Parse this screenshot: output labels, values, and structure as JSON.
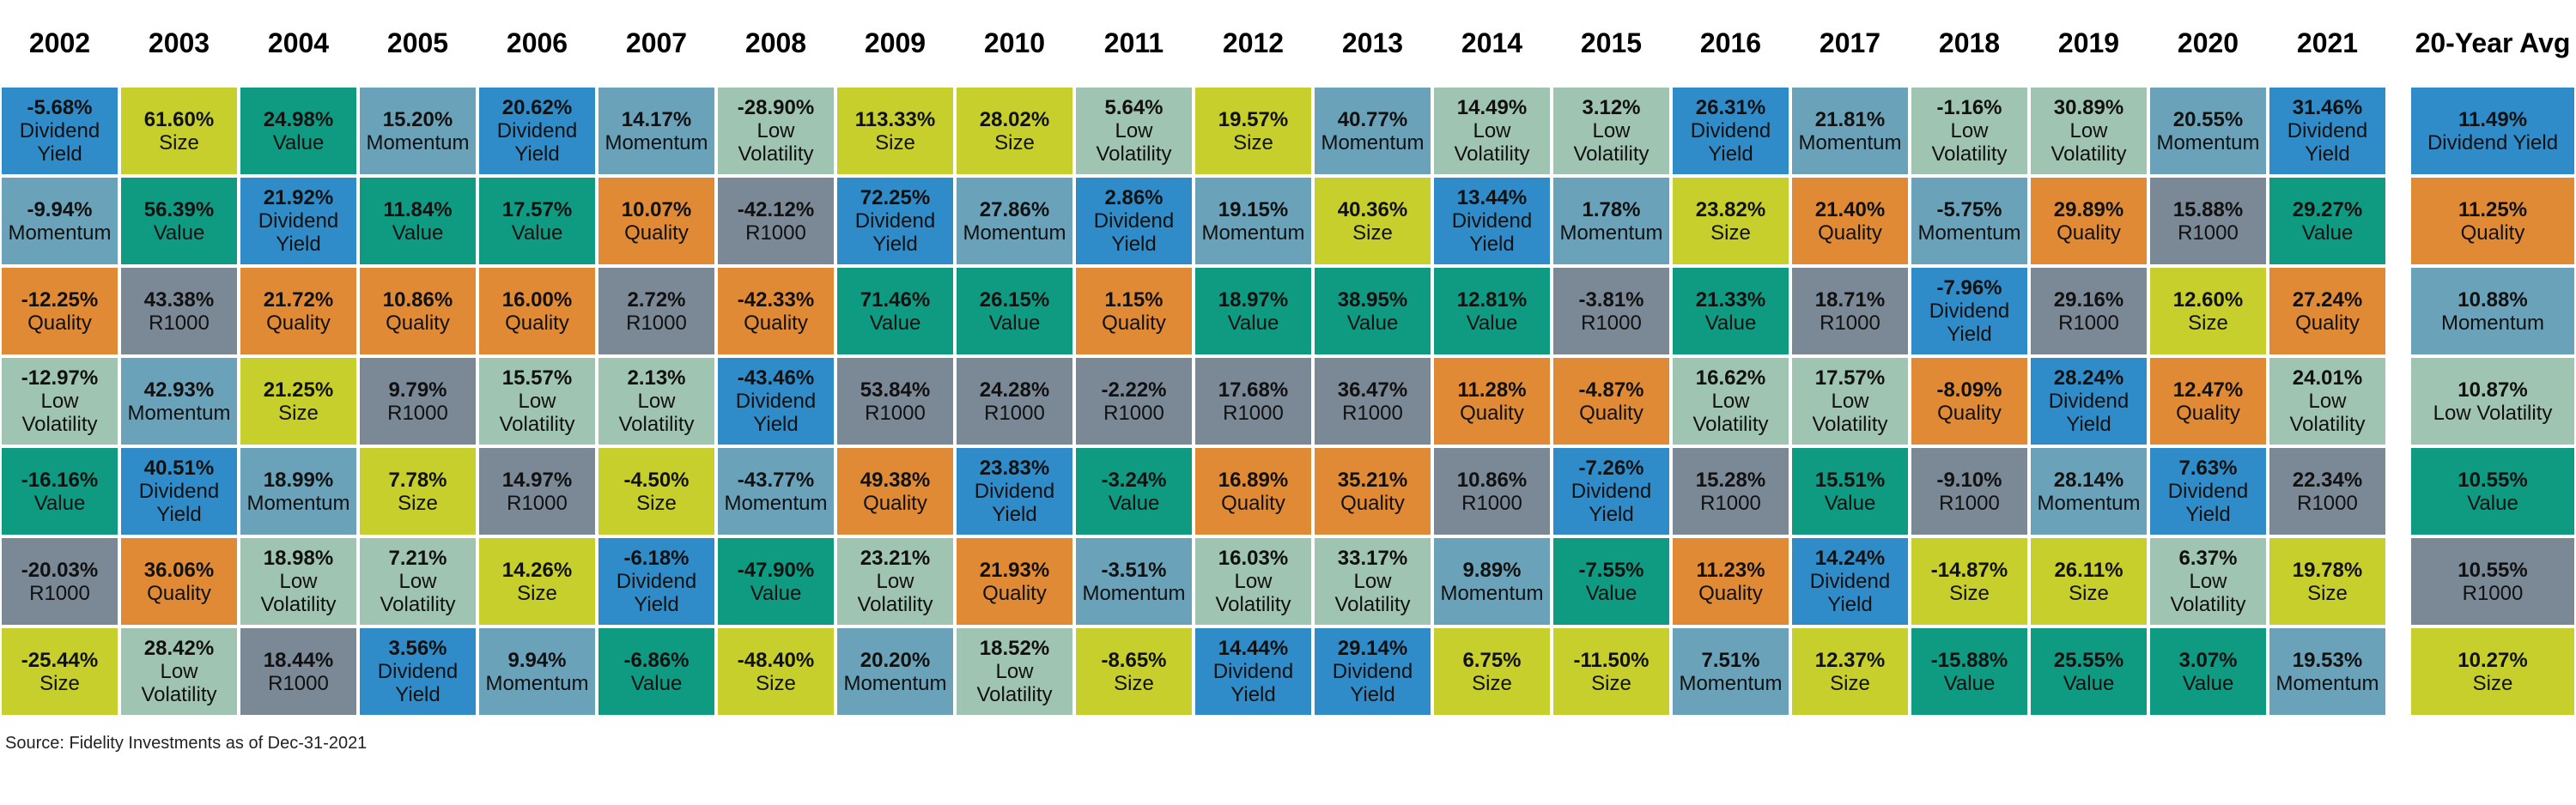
{
  "columns": [
    {
      "year": "2002",
      "cells": [
        [
          "-5.68%",
          "Dividend Yield"
        ],
        [
          "-9.94%",
          "Momentum"
        ],
        [
          "-12.25%",
          "Quality"
        ],
        [
          "-12.97%",
          "Low Volatility"
        ],
        [
          "-16.16%",
          "Value"
        ],
        [
          "-20.03%",
          "R1000"
        ],
        [
          "-25.44%",
          "Size"
        ]
      ]
    },
    {
      "year": "2003",
      "cells": [
        [
          "61.60%",
          "Size"
        ],
        [
          "56.39%",
          "Value"
        ],
        [
          "43.38%",
          "R1000"
        ],
        [
          "42.93%",
          "Momentum"
        ],
        [
          "40.51%",
          "Dividend Yield"
        ],
        [
          "36.06%",
          "Quality"
        ],
        [
          "28.42%",
          "Low Volatility"
        ]
      ]
    },
    {
      "year": "2004",
      "cells": [
        [
          "24.98%",
          "Value"
        ],
        [
          "21.92%",
          "Dividend Yield"
        ],
        [
          "21.72%",
          "Quality"
        ],
        [
          "21.25%",
          "Size"
        ],
        [
          "18.99%",
          "Momentum"
        ],
        [
          "18.98%",
          "Low Volatility"
        ],
        [
          "18.44%",
          "R1000"
        ]
      ]
    },
    {
      "year": "2005",
      "cells": [
        [
          "15.20%",
          "Momentum"
        ],
        [
          "11.84%",
          "Value"
        ],
        [
          "10.86%",
          "Quality"
        ],
        [
          "9.79%",
          "R1000"
        ],
        [
          "7.78%",
          "Size"
        ],
        [
          "7.21%",
          "Low Volatility"
        ],
        [
          "3.56%",
          "Dividend Yield"
        ]
      ]
    },
    {
      "year": "2006",
      "cells": [
        [
          "20.62%",
          "Dividend Yield"
        ],
        [
          "17.57%",
          "Value"
        ],
        [
          "16.00%",
          "Quality"
        ],
        [
          "15.57%",
          "Low Volatility"
        ],
        [
          "14.97%",
          "R1000"
        ],
        [
          "14.26%",
          "Size"
        ],
        [
          "9.94%",
          "Momentum"
        ]
      ]
    },
    {
      "year": "2007",
      "cells": [
        [
          "14.17%",
          "Momentum"
        ],
        [
          "10.07%",
          "Quality"
        ],
        [
          "2.72%",
          "R1000"
        ],
        [
          "2.13%",
          "Low Volatility"
        ],
        [
          "-4.50%",
          "Size"
        ],
        [
          "-6.18%",
          "Dividend Yield"
        ],
        [
          "-6.86%",
          "Value"
        ]
      ]
    },
    {
      "year": "2008",
      "cells": [
        [
          "-28.90%",
          "Low Volatility"
        ],
        [
          "-42.12%",
          "R1000"
        ],
        [
          "-42.33%",
          "Quality"
        ],
        [
          "-43.46%",
          "Dividend Yield"
        ],
        [
          "-43.77%",
          "Momentum"
        ],
        [
          "-47.90%",
          "Value"
        ],
        [
          "-48.40%",
          "Size"
        ]
      ]
    },
    {
      "year": "2009",
      "cells": [
        [
          "113.33%",
          "Size"
        ],
        [
          "72.25%",
          "Dividend Yield"
        ],
        [
          "71.46%",
          "Value"
        ],
        [
          "53.84%",
          "R1000"
        ],
        [
          "49.38%",
          "Quality"
        ],
        [
          "23.21%",
          "Low Volatility"
        ],
        [
          "20.20%",
          "Momentum"
        ]
      ]
    },
    {
      "year": "2010",
      "cells": [
        [
          "28.02%",
          "Size"
        ],
        [
          "27.86%",
          "Momentum"
        ],
        [
          "26.15%",
          "Value"
        ],
        [
          "24.28%",
          "R1000"
        ],
        [
          "23.83%",
          "Dividend Yield"
        ],
        [
          "21.93%",
          "Quality"
        ],
        [
          "18.52%",
          "Low Volatility"
        ]
      ]
    },
    {
      "year": "2011",
      "cells": [
        [
          "5.64%",
          "Low Volatility"
        ],
        [
          "2.86%",
          "Dividend Yield"
        ],
        [
          "1.15%",
          "Quality"
        ],
        [
          "-2.22%",
          "R1000"
        ],
        [
          "-3.24%",
          "Value"
        ],
        [
          "-3.51%",
          "Momentum"
        ],
        [
          "-8.65%",
          "Size"
        ]
      ]
    },
    {
      "year": "2012",
      "cells": [
        [
          "19.57%",
          "Size"
        ],
        [
          "19.15%",
          "Momentum"
        ],
        [
          "18.97%",
          "Value"
        ],
        [
          "17.68%",
          "R1000"
        ],
        [
          "16.89%",
          "Quality"
        ],
        [
          "16.03%",
          "Low Volatility"
        ],
        [
          "14.44%",
          "Dividend Yield"
        ]
      ]
    },
    {
      "year": "2013",
      "cells": [
        [
          "40.77%",
          "Momentum"
        ],
        [
          "40.36%",
          "Size"
        ],
        [
          "38.95%",
          "Value"
        ],
        [
          "36.47%",
          "R1000"
        ],
        [
          "35.21%",
          "Quality"
        ],
        [
          "33.17%",
          "Low Volatility"
        ],
        [
          "29.14%",
          "Dividend Yield"
        ]
      ]
    },
    {
      "year": "2014",
      "cells": [
        [
          "14.49%",
          "Low Volatility"
        ],
        [
          "13.44%",
          "Dividend Yield"
        ],
        [
          "12.81%",
          "Value"
        ],
        [
          "11.28%",
          "Quality"
        ],
        [
          "10.86%",
          "R1000"
        ],
        [
          "9.89%",
          "Momentum"
        ],
        [
          "6.75%",
          "Size"
        ]
      ]
    },
    {
      "year": "2015",
      "cells": [
        [
          "3.12%",
          "Low Volatility"
        ],
        [
          "1.78%",
          "Momentum"
        ],
        [
          "-3.81%",
          "R1000"
        ],
        [
          "-4.87%",
          "Quality"
        ],
        [
          "-7.26%",
          "Dividend Yield"
        ],
        [
          "-7.55%",
          "Value"
        ],
        [
          "-11.50%",
          "Size"
        ]
      ]
    },
    {
      "year": "2016",
      "cells": [
        [
          "26.31%",
          "Dividend Yield"
        ],
        [
          "23.82%",
          "Size"
        ],
        [
          "21.33%",
          "Value"
        ],
        [
          "16.62%",
          "Low Volatility"
        ],
        [
          "15.28%",
          "R1000"
        ],
        [
          "11.23%",
          "Quality"
        ],
        [
          "7.51%",
          "Momentum"
        ]
      ]
    },
    {
      "year": "2017",
      "cells": [
        [
          "21.81%",
          "Momentum"
        ],
        [
          "21.40%",
          "Quality"
        ],
        [
          "18.71%",
          "R1000"
        ],
        [
          "17.57%",
          "Low Volatility"
        ],
        [
          "15.51%",
          "Value"
        ],
        [
          "14.24%",
          "Dividend Yield"
        ],
        [
          "12.37%",
          "Size"
        ]
      ]
    },
    {
      "year": "2018",
      "cells": [
        [
          "-1.16%",
          "Low Volatility"
        ],
        [
          "-5.75%",
          "Momentum"
        ],
        [
          "-7.96%",
          "Dividend Yield"
        ],
        [
          "-8.09%",
          "Quality"
        ],
        [
          "-9.10%",
          "R1000"
        ],
        [
          "-14.87%",
          "Size"
        ],
        [
          "-15.88%",
          "Value"
        ]
      ]
    },
    {
      "year": "2019",
      "cells": [
        [
          "30.89%",
          "Low Volatility"
        ],
        [
          "29.89%",
          "Quality"
        ],
        [
          "29.16%",
          "R1000"
        ],
        [
          "28.24%",
          "Dividend Yield"
        ],
        [
          "28.14%",
          "Momentum"
        ],
        [
          "26.11%",
          "Size"
        ],
        [
          "25.55%",
          "Value"
        ]
      ]
    },
    {
      "year": "2020",
      "cells": [
        [
          "20.55%",
          "Momentum"
        ],
        [
          "15.88%",
          "R1000"
        ],
        [
          "12.60%",
          "Size"
        ],
        [
          "12.47%",
          "Quality"
        ],
        [
          "7.63%",
          "Dividend Yield"
        ],
        [
          "6.37%",
          "Low Volatility"
        ],
        [
          "3.07%",
          "Value"
        ]
      ]
    },
    {
      "year": "2021",
      "cells": [
        [
          "31.46%",
          "Dividend Yield"
        ],
        [
          "29.27%",
          "Value"
        ],
        [
          "27.24%",
          "Quality"
        ],
        [
          "24.01%",
          "Low Volatility"
        ],
        [
          "22.34%",
          "R1000"
        ],
        [
          "19.78%",
          "Size"
        ],
        [
          "19.53%",
          "Momentum"
        ]
      ]
    }
  ],
  "average": {
    "year": "20-Year Avg",
    "cells": [
      [
        "11.49%",
        "Dividend Yield"
      ],
      [
        "11.25%",
        "Quality"
      ],
      [
        "10.88%",
        "Momentum"
      ],
      [
        "10.87%",
        "Low Volatility"
      ],
      [
        "10.55%",
        "Value"
      ],
      [
        "10.55%",
        "R1000"
      ],
      [
        "10.27%",
        "Size"
      ]
    ]
  },
  "factor_colors": {
    "Dividend Yield": "#2f8cc8",
    "Size": "#c6cf2c",
    "Value": "#0f9a82",
    "Momentum": "#6aa3b9",
    "Low Volatility": "#a0c4b2",
    "Quality": "#e08a36",
    "R1000": "#7b8997"
  },
  "source": "Source: Fidelity Investments as of Dec-31-2021"
}
